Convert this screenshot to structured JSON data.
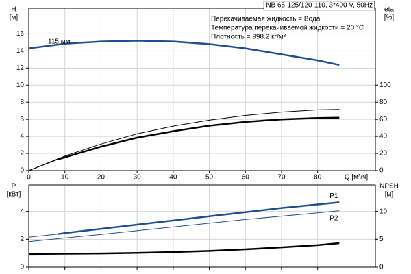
{
  "chart_data": [
    {
      "type": "line",
      "model": "NB 65-125/120-110, 3*400 V, 50Hz",
      "notes": [
        "Перекачиваемая жидкость = Вода",
        "Температура перекачиваемой жидкости = 20 °C",
        "Плотность = 998.2 кг/м³"
      ],
      "y_label": "H",
      "y_unit": "[м]",
      "y2_label": "eta",
      "y2_unit": "[%]",
      "x_label": "Q [м³/ч]",
      "xlim": [
        0,
        96
      ],
      "xticks": [
        0,
        10,
        20,
        30,
        40,
        50,
        60,
        70,
        80
      ],
      "ylim": [
        0,
        19
      ],
      "yticks": [
        0,
        2,
        4,
        6,
        8,
        10,
        12,
        14,
        16
      ],
      "y2lim": [
        0,
        190
      ],
      "y2ticks": [
        0,
        20,
        40,
        60,
        80,
        100
      ],
      "grid": true,
      "series": [
        {
          "name": "115 мм",
          "color": "#1f4e8c",
          "width": 2.5,
          "x": [
            0,
            10,
            20,
            30,
            40,
            50,
            60,
            70,
            80,
            86
          ],
          "values": [
            14.3,
            14.85,
            15.1,
            15.2,
            15.1,
            14.8,
            14.3,
            13.6,
            12.9,
            12.35
          ]
        },
        {
          "color": "#000000",
          "width": 1,
          "axis": "y2",
          "x": [
            0,
            10,
            20,
            30,
            40,
            50,
            60,
            70,
            80,
            86
          ],
          "values": [
            0,
            17,
            31,
            43,
            52,
            59,
            64.5,
            68.5,
            71,
            71.5
          ]
        },
        {
          "color": "#000000",
          "width": 1,
          "axis": "y2",
          "x": [
            0,
            8
          ],
          "values": [
            0,
            13
          ]
        },
        {
          "color": "#000000",
          "width": 2.5,
          "axis": "y2",
          "x": [
            8,
            10,
            20,
            30,
            40,
            50,
            60,
            70,
            80,
            86
          ],
          "values": [
            13,
            15.5,
            28,
            38.5,
            46,
            52.5,
            57,
            60,
            61.5,
            62
          ]
        }
      ]
    },
    {
      "type": "line",
      "y_label": "P",
      "y_unit": "[кВт]",
      "y2_label": "NPSH",
      "y2_unit": "[м]",
      "xlim": [
        0,
        96
      ],
      "xticks": [
        0,
        10,
        20,
        30,
        40,
        50,
        60,
        70,
        80
      ],
      "ylim": [
        0,
        5.9
      ],
      "yticks": [
        0,
        2,
        4
      ],
      "y2lim": [
        0,
        14.75
      ],
      "y2ticks": [
        0,
        5,
        10
      ],
      "grid": true,
      "series": [
        {
          "name": "P1",
          "color": "#1f4e8c",
          "width": 2.5,
          "x": [
            8,
            10,
            20,
            30,
            40,
            50,
            60,
            70,
            80,
            86
          ],
          "values": [
            2.37,
            2.45,
            2.75,
            3.05,
            3.35,
            3.65,
            3.95,
            4.25,
            4.5,
            4.65
          ]
        },
        {
          "color": "#1f4e8c",
          "width": 1,
          "x": [
            0,
            8
          ],
          "values": [
            2.15,
            2.37
          ]
        },
        {
          "name": "P2",
          "color": "#1f4e8c",
          "width": 1,
          "x": [
            0,
            20,
            40,
            60,
            80,
            86
          ],
          "values": [
            1.83,
            2.35,
            2.88,
            3.42,
            3.9,
            4.05
          ]
        },
        {
          "color": "#000000",
          "width": 2.5,
          "axis": "y2",
          "x": [
            0,
            10,
            20,
            30,
            40,
            50,
            60,
            70,
            80,
            86
          ],
          "values": [
            2.35,
            2.4,
            2.45,
            2.55,
            2.7,
            2.9,
            3.2,
            3.55,
            3.95,
            4.3
          ]
        }
      ]
    }
  ]
}
